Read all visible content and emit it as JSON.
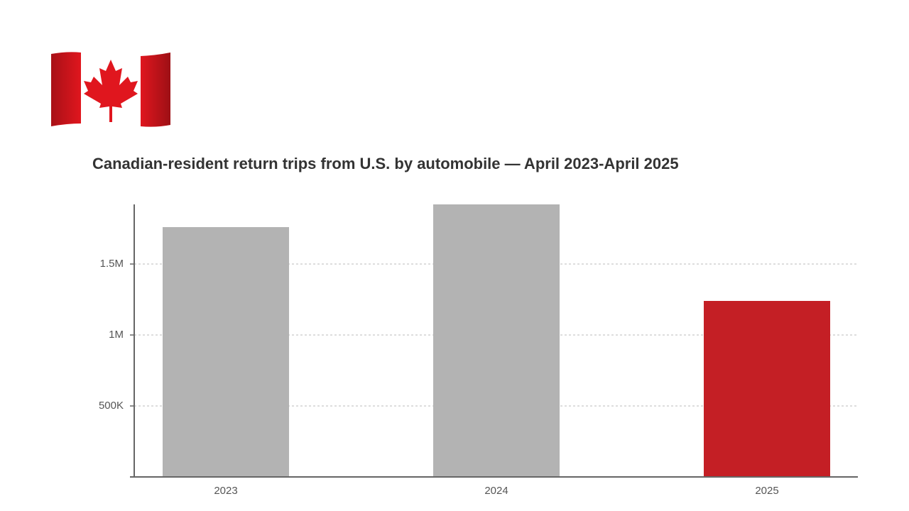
{
  "chart_data": {
    "type": "bar",
    "title": "Canadian-resident return trips from U.S. by automobile — April 2023-April 2025",
    "categories": [
      "2023",
      "2024",
      "2025"
    ],
    "values": [
      1760000,
      1920000,
      1240000
    ],
    "colors": [
      "#b3b3b3",
      "#b3b3b3",
      "#c41f25"
    ],
    "ylim": [
      0,
      1920000
    ],
    "yticks": [
      {
        "value": 500000,
        "label": "500K"
      },
      {
        "value": 1000000,
        "label": "1M"
      },
      {
        "value": 1500000,
        "label": "1.5M"
      }
    ],
    "grid": true
  }
}
